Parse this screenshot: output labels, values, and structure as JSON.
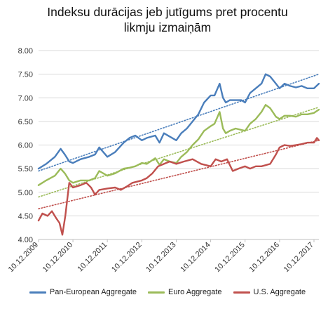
{
  "chart_data": {
    "type": "line",
    "title_lines": [
      "Indeksu durācijas jeb jutīgums pret procentu",
      "likmju izmaiņām"
    ],
    "xlabel": "",
    "ylabel": "",
    "ylim": [
      4.0,
      8.0
    ],
    "y_ticks": [
      "4.00",
      "4.50",
      "5.00",
      "5.50",
      "6.00",
      "6.50",
      "7.00",
      "7.50",
      "8.00"
    ],
    "y_tick_values": [
      4.0,
      4.5,
      5.0,
      5.5,
      6.0,
      6.5,
      7.0,
      7.5,
      8.0
    ],
    "xlim": [
      "2009-12-10",
      "2018-01-31"
    ],
    "x_ticks": [
      "10.12.2009",
      "10.12.2010",
      "10.12.2011",
      "10.12.2012",
      "10.12.2013",
      "10.12.2014",
      "10.12.2015",
      "10.12.2016",
      "10.12.2017"
    ],
    "x_tick_dates": [
      "2009-12-10",
      "2010-12-10",
      "2011-12-10",
      "2012-12-10",
      "2013-12-10",
      "2014-12-10",
      "2015-12-10",
      "2016-12-10",
      "2017-12-10"
    ],
    "grid": true,
    "legend_position": "bottom",
    "trendlines": "dotted linear trend per series",
    "series": [
      {
        "name": "Pan-European Aggregate",
        "color": "#4a7ebb",
        "x": [
          "2009-12-10",
          "2010-03-01",
          "2010-06-01",
          "2010-08-01",
          "2010-09-15",
          "2010-11-01",
          "2010-12-10",
          "2011-03-01",
          "2011-06-01",
          "2011-08-01",
          "2011-09-15",
          "2011-12-10",
          "2012-03-01",
          "2012-06-01",
          "2012-08-01",
          "2012-10-01",
          "2012-12-10",
          "2013-02-01",
          "2013-05-01",
          "2013-06-15",
          "2013-08-01",
          "2013-10-01",
          "2013-12-10",
          "2014-02-01",
          "2014-04-01",
          "2014-06-01",
          "2014-08-01",
          "2014-10-01",
          "2014-12-10",
          "2015-01-20",
          "2015-03-15",
          "2015-04-20",
          "2015-05-20",
          "2015-07-01",
          "2015-09-01",
          "2015-11-01",
          "2015-12-10",
          "2016-02-01",
          "2016-04-01",
          "2016-06-01",
          "2016-07-15",
          "2016-09-01",
          "2016-11-01",
          "2016-12-10",
          "2017-02-01",
          "2017-04-01",
          "2017-06-01",
          "2017-08-01",
          "2017-10-01",
          "2017-12-10",
          "2018-01-31"
        ],
        "values": [
          5.5,
          5.6,
          5.75,
          5.92,
          5.8,
          5.65,
          5.62,
          5.7,
          5.75,
          5.8,
          5.95,
          5.75,
          5.85,
          6.05,
          6.15,
          6.2,
          6.1,
          6.15,
          6.2,
          6.05,
          6.25,
          6.18,
          6.1,
          6.25,
          6.35,
          6.5,
          6.65,
          6.9,
          7.05,
          7.05,
          7.3,
          7.0,
          6.9,
          6.95,
          6.95,
          6.95,
          6.9,
          7.1,
          7.2,
          7.3,
          7.5,
          7.45,
          7.3,
          7.2,
          7.3,
          7.25,
          7.22,
          7.25,
          7.2,
          7.2,
          7.3
        ],
        "trend": [
          5.45,
          7.5
        ]
      },
      {
        "name": "Euro Aggregate",
        "color": "#9bbb59",
        "x": [
          "2009-12-10",
          "2010-03-01",
          "2010-06-01",
          "2010-08-01",
          "2010-09-15",
          "2010-11-01",
          "2010-12-10",
          "2011-03-01",
          "2011-06-01",
          "2011-08-01",
          "2011-09-15",
          "2011-12-10",
          "2012-03-01",
          "2012-06-01",
          "2012-08-01",
          "2012-10-01",
          "2012-12-10",
          "2013-02-01",
          "2013-05-01",
          "2013-06-15",
          "2013-08-01",
          "2013-10-01",
          "2013-12-10",
          "2014-02-01",
          "2014-04-01",
          "2014-06-01",
          "2014-08-01",
          "2014-10-01",
          "2014-12-10",
          "2015-01-20",
          "2015-03-15",
          "2015-04-20",
          "2015-05-20",
          "2015-07-01",
          "2015-09-01",
          "2015-11-01",
          "2015-12-10",
          "2016-02-01",
          "2016-04-01",
          "2016-06-01",
          "2016-07-15",
          "2016-09-01",
          "2016-11-01",
          "2016-12-10",
          "2017-02-01",
          "2017-04-01",
          "2017-06-01",
          "2017-08-01",
          "2017-10-01",
          "2017-12-10",
          "2018-01-31"
        ],
        "values": [
          5.15,
          5.25,
          5.35,
          5.5,
          5.4,
          5.25,
          5.2,
          5.25,
          5.25,
          5.3,
          5.45,
          5.35,
          5.4,
          5.5,
          5.52,
          5.55,
          5.62,
          5.6,
          5.72,
          5.58,
          5.7,
          5.65,
          5.62,
          5.75,
          5.85,
          6.0,
          6.12,
          6.3,
          6.4,
          6.45,
          6.7,
          6.35,
          6.25,
          6.3,
          6.35,
          6.32,
          6.3,
          6.45,
          6.55,
          6.7,
          6.85,
          6.78,
          6.6,
          6.55,
          6.62,
          6.62,
          6.6,
          6.65,
          6.65,
          6.68,
          6.75
        ],
        "trend": [
          4.9,
          6.8
        ]
      },
      {
        "name": "U.S. Aggregate",
        "color": "#c0504d",
        "x": [
          "2009-12-10",
          "2010-01-20",
          "2010-03-15",
          "2010-05-01",
          "2010-06-15",
          "2010-07-20",
          "2010-08-20",
          "2010-09-20",
          "2010-11-01",
          "2010-12-10",
          "2011-03-01",
          "2011-05-01",
          "2011-06-20",
          "2011-08-01",
          "2011-09-15",
          "2011-12-10",
          "2012-03-01",
          "2012-05-01",
          "2012-07-01",
          "2012-09-01",
          "2012-12-10",
          "2013-02-01",
          "2013-04-01",
          "2013-06-01",
          "2013-08-01",
          "2013-10-01",
          "2013-12-10",
          "2014-03-01",
          "2014-06-01",
          "2014-09-01",
          "2014-12-10",
          "2015-02-01",
          "2015-04-01",
          "2015-06-01",
          "2015-08-01",
          "2015-10-01",
          "2015-12-10",
          "2016-02-01",
          "2016-04-01",
          "2016-06-01",
          "2016-09-01",
          "2016-11-01",
          "2016-12-10",
          "2017-02-01",
          "2017-04-01",
          "2017-06-01",
          "2017-08-01",
          "2017-10-01",
          "2017-12-10",
          "2018-01-10",
          "2018-01-31"
        ],
        "values": [
          4.4,
          4.55,
          4.5,
          4.6,
          4.45,
          4.35,
          4.1,
          4.5,
          5.2,
          5.1,
          5.15,
          5.2,
          5.1,
          4.95,
          5.05,
          5.08,
          5.1,
          5.05,
          5.12,
          5.2,
          5.25,
          5.3,
          5.4,
          5.55,
          5.6,
          5.65,
          5.6,
          5.65,
          5.7,
          5.6,
          5.55,
          5.7,
          5.65,
          5.7,
          5.45,
          5.5,
          5.55,
          5.5,
          5.55,
          5.55,
          5.6,
          5.8,
          5.95,
          6.0,
          5.98,
          6.0,
          6.02,
          6.05,
          6.05,
          6.15,
          6.1
        ],
        "trend": [
          4.65,
          6.1
        ]
      }
    ]
  }
}
